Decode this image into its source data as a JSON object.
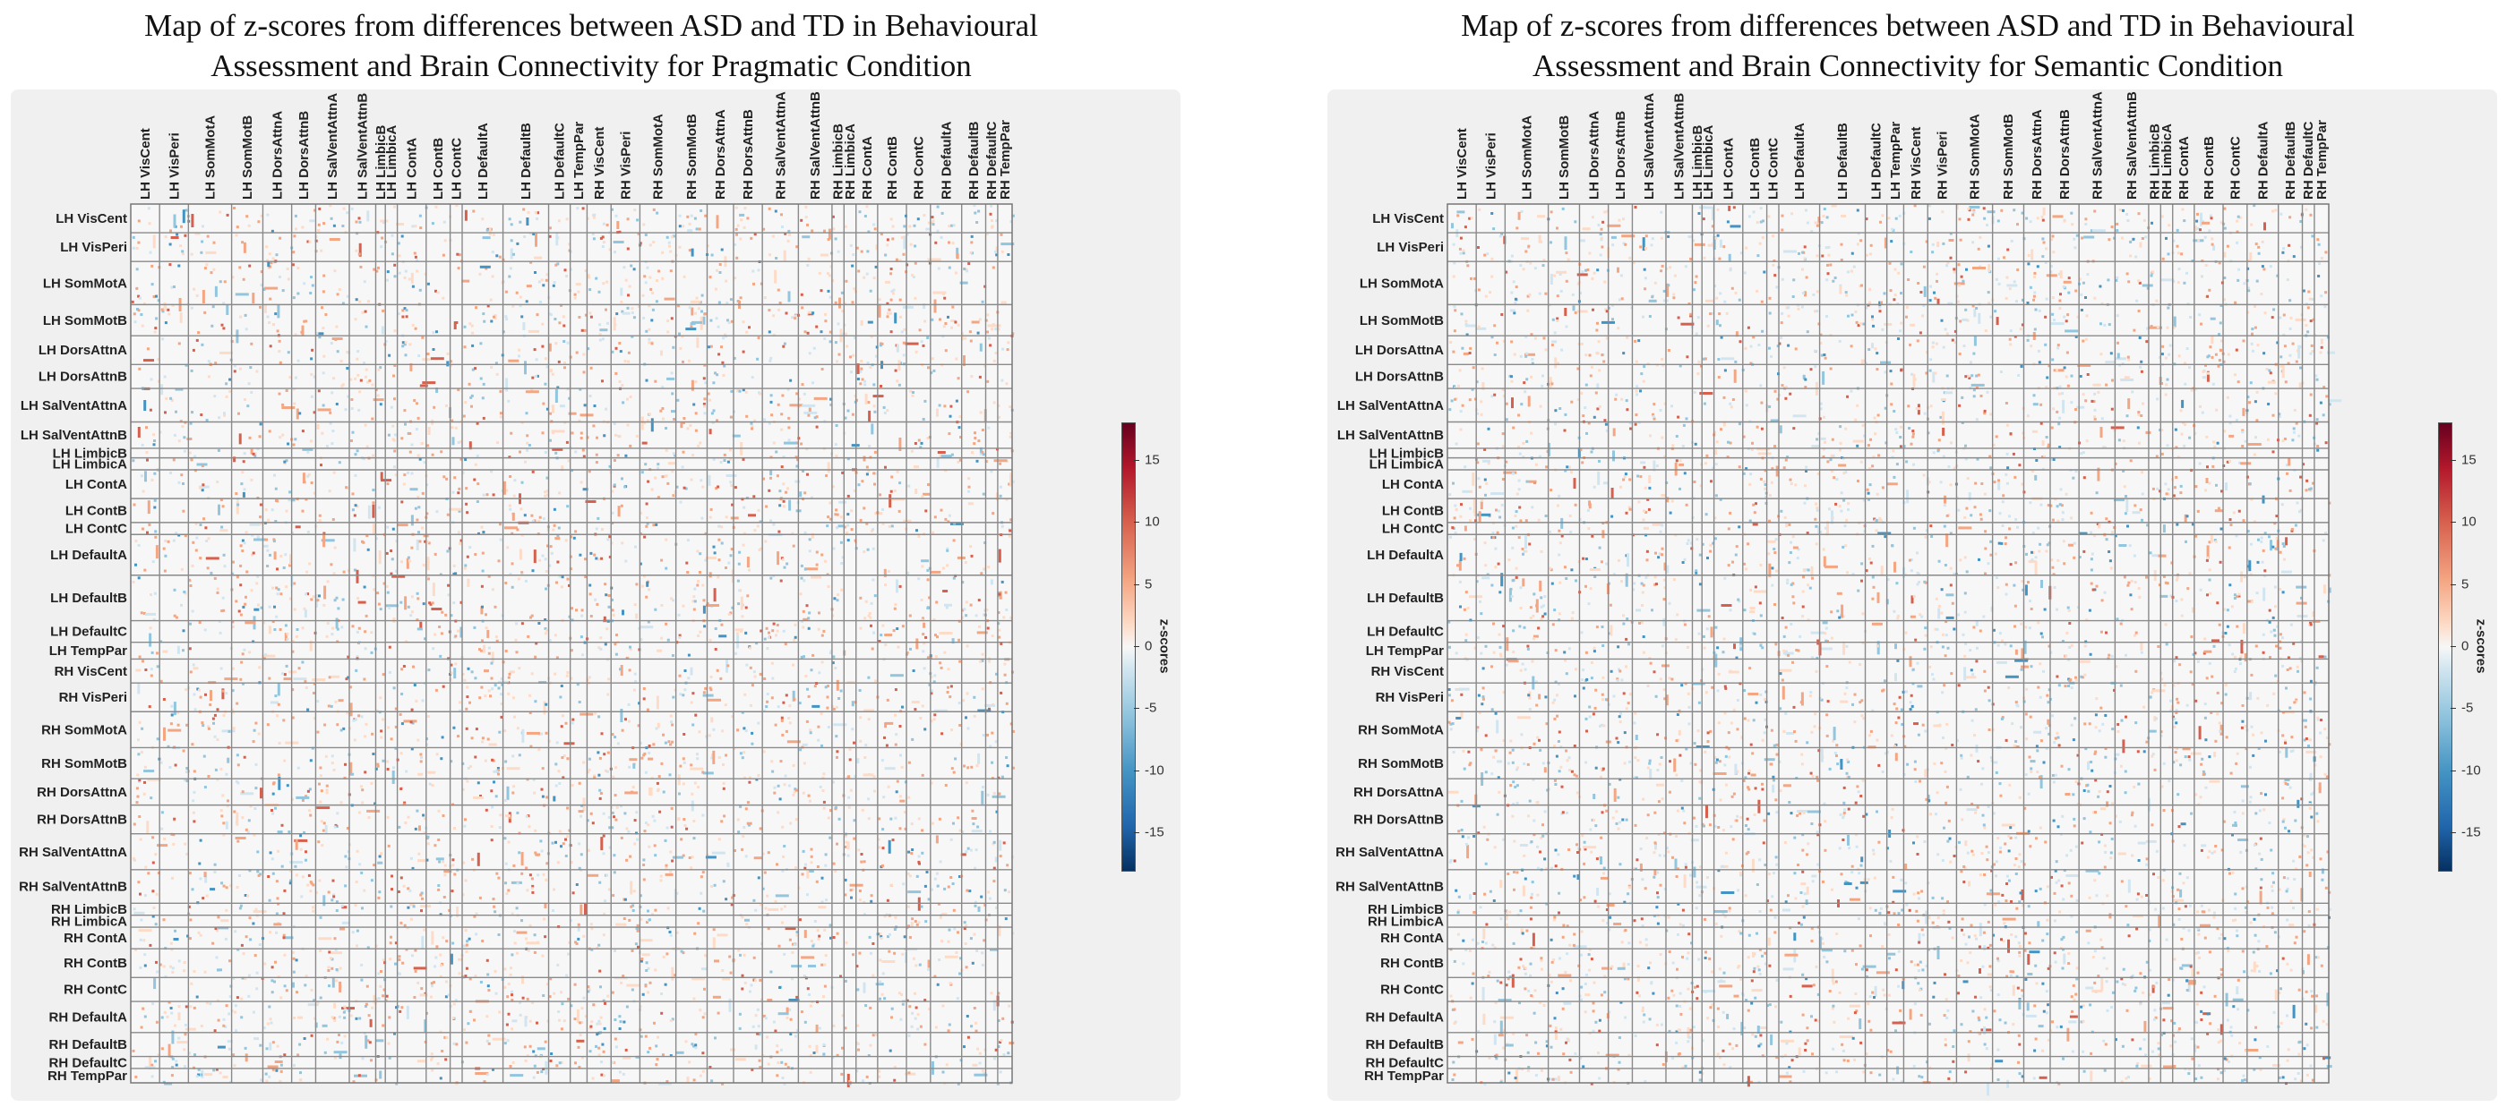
{
  "chart_data": [
    {
      "type": "heatmap",
      "title": "Map of z-scores from differences between ASD and TD in Behavioural Assessment and Brain Connectivity for Pragmatic Condition",
      "title_lines": [
        "Map of z-scores from differences between ASD and TD in Behavioural",
        "Assessment and Brain Connectivity for Pragmatic Condition"
      ],
      "condition": "Pragmatic",
      "row_labels": [
        "LH VisCent",
        "LH VisPeri",
        "LH SomMotA",
        "LH SomMotB",
        "LH DorsAttnA",
        "LH DorsAttnB",
        "LH SalVentAttnA",
        "LH SalVentAttnB",
        "LH LimbicB",
        "LH LimbicA",
        "LH ContA",
        "LH ContB",
        "LH ContC",
        "LH DefaultA",
        "LH DefaultB",
        "LH DefaultC",
        "LH TempPar",
        "RH VisCent",
        "RH VisPeri",
        "RH SomMotA",
        "RH SomMotB",
        "RH DorsAttnA",
        "RH DorsAttnB",
        "RH SalVentAttnA",
        "RH SalVentAttnB",
        "RH LimbicB",
        "RH LimbicA",
        "RH ContA",
        "RH ContB",
        "RH ContC",
        "RH DefaultA",
        "RH DefaultB",
        "RH DefaultC",
        "RH TempPar"
      ],
      "col_labels": [
        "LH VisCent",
        "LH VisPeri",
        "LH SomMotA",
        "LH SomMotB",
        "LH DorsAttnA",
        "LH DorsAttnB",
        "LH SalVentAttnA",
        "LH SalVentAttnB",
        "LH LimbicB",
        "LH LimbicA",
        "LH ContA",
        "LH ContB",
        "LH ContC",
        "LH DefaultA",
        "LH DefaultB",
        "LH DefaultC",
        "LH TempPar",
        "RH VisCent",
        "RH VisPeri",
        "RH SomMotA",
        "RH SomMotB",
        "RH DorsAttnA",
        "RH DorsAttnB",
        "RH SalVentAttnA",
        "RH SalVentAttnB",
        "RH LimbicB",
        "RH LimbicA",
        "RH ContA",
        "RH ContB",
        "RH ContC",
        "RH DefaultA",
        "RH DefaultB",
        "RH DefaultC",
        "RH TempPar"
      ],
      "network_weights": [
        24,
        24,
        36,
        26,
        24,
        20,
        28,
        22,
        8,
        10,
        24,
        20,
        10,
        34,
        38,
        18,
        14,
        20,
        24,
        30,
        26,
        22,
        24,
        30,
        28,
        10,
        10,
        18,
        24,
        20,
        26,
        20,
        10,
        12
      ],
      "colorbar": {
        "label": "z-scores",
        "range": [
          -18,
          18
        ],
        "ticks": [
          15,
          10,
          5,
          0,
          -5,
          -10,
          -15
        ]
      },
      "seed": 7
    },
    {
      "type": "heatmap",
      "title": "Map of z-scores from differences between ASD and TD in Behavioural Assessment and Brain Connectivity for Semantic Condition",
      "title_lines": [
        "Map of z-scores from differences between ASD and TD in Behavioural",
        "Assessment and Brain Connectivity for Semantic Condition"
      ],
      "condition": "Semantic",
      "row_labels": [
        "LH VisCent",
        "LH VisPeri",
        "LH SomMotA",
        "LH SomMotB",
        "LH DorsAttnA",
        "LH DorsAttnB",
        "LH SalVentAttnA",
        "LH SalVentAttnB",
        "LH LimbicB",
        "LH LimbicA",
        "LH ContA",
        "LH ContB",
        "LH ContC",
        "LH DefaultA",
        "LH DefaultB",
        "LH DefaultC",
        "LH TempPar",
        "RH VisCent",
        "RH VisPeri",
        "RH SomMotA",
        "RH SomMotB",
        "RH DorsAttnA",
        "RH DorsAttnB",
        "RH SalVentAttnA",
        "RH SalVentAttnB",
        "RH LimbicB",
        "RH LimbicA",
        "RH ContA",
        "RH ContB",
        "RH ContC",
        "RH DefaultA",
        "RH DefaultB",
        "RH DefaultC",
        "RH TempPar"
      ],
      "col_labels": [
        "LH VisCent",
        "LH VisPeri",
        "LH SomMotA",
        "LH SomMotB",
        "LH DorsAttnA",
        "LH DorsAttnB",
        "LH SalVentAttnA",
        "LH SalVentAttnB",
        "LH LimbicB",
        "LH LimbicA",
        "LH ContA",
        "LH ContB",
        "LH ContC",
        "LH DefaultA",
        "LH DefaultB",
        "LH DefaultC",
        "LH TempPar",
        "RH VisCent",
        "RH VisPeri",
        "RH SomMotA",
        "RH SomMotB",
        "RH DorsAttnA",
        "RH DorsAttnB",
        "RH SalVentAttnA",
        "RH SalVentAttnB",
        "RH LimbicB",
        "RH LimbicA",
        "RH ContA",
        "RH ContB",
        "RH ContC",
        "RH DefaultA",
        "RH DefaultB",
        "RH DefaultC",
        "RH TempPar"
      ],
      "network_weights": [
        24,
        24,
        36,
        26,
        24,
        20,
        28,
        22,
        8,
        10,
        24,
        20,
        10,
        34,
        38,
        18,
        14,
        20,
        24,
        30,
        26,
        22,
        24,
        30,
        28,
        10,
        10,
        18,
        24,
        20,
        26,
        20,
        10,
        12
      ],
      "colorbar": {
        "label": "z-scores",
        "range": [
          -18,
          18
        ],
        "ticks": [
          15,
          10,
          5,
          0,
          -5,
          -10,
          -15
        ]
      },
      "seed": 31
    }
  ]
}
